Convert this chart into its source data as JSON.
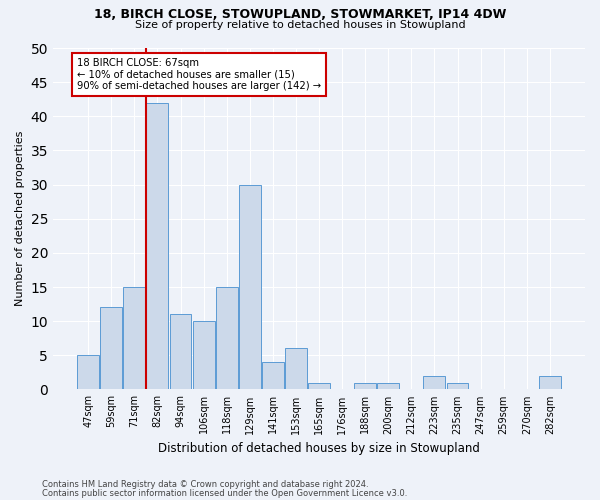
{
  "title1": "18, BIRCH CLOSE, STOWUPLAND, STOWMARKET, IP14 4DW",
  "title2": "Size of property relative to detached houses in Stowupland",
  "xlabel": "Distribution of detached houses by size in Stowupland",
  "ylabel": "Number of detached properties",
  "categories": [
    "47sqm",
    "59sqm",
    "71sqm",
    "82sqm",
    "94sqm",
    "106sqm",
    "118sqm",
    "129sqm",
    "141sqm",
    "153sqm",
    "165sqm",
    "176sqm",
    "188sqm",
    "200sqm",
    "212sqm",
    "223sqm",
    "235sqm",
    "247sqm",
    "259sqm",
    "270sqm",
    "282sqm"
  ],
  "values": [
    5,
    12,
    15,
    42,
    11,
    10,
    15,
    30,
    4,
    6,
    1,
    0,
    1,
    1,
    0,
    2,
    1,
    0,
    0,
    0,
    2
  ],
  "bar_color": "#ccd9ea",
  "bar_edge_color": "#5b9bd5",
  "annotation_text1": "18 BIRCH CLOSE: 67sqm",
  "annotation_text2": "← 10% of detached houses are smaller (15)",
  "annotation_text3": "90% of semi-detached houses are larger (142) →",
  "vline_color": "#cc0000",
  "vline_x": 2.5,
  "ylim": [
    0,
    50
  ],
  "yticks": [
    0,
    5,
    10,
    15,
    20,
    25,
    30,
    35,
    40,
    45,
    50
  ],
  "footer1": "Contains HM Land Registry data © Crown copyright and database right 2024.",
  "footer2": "Contains public sector information licensed under the Open Government Licence v3.0.",
  "bg_color": "#eef2f9",
  "axes_bg_color": "#eef2f9"
}
